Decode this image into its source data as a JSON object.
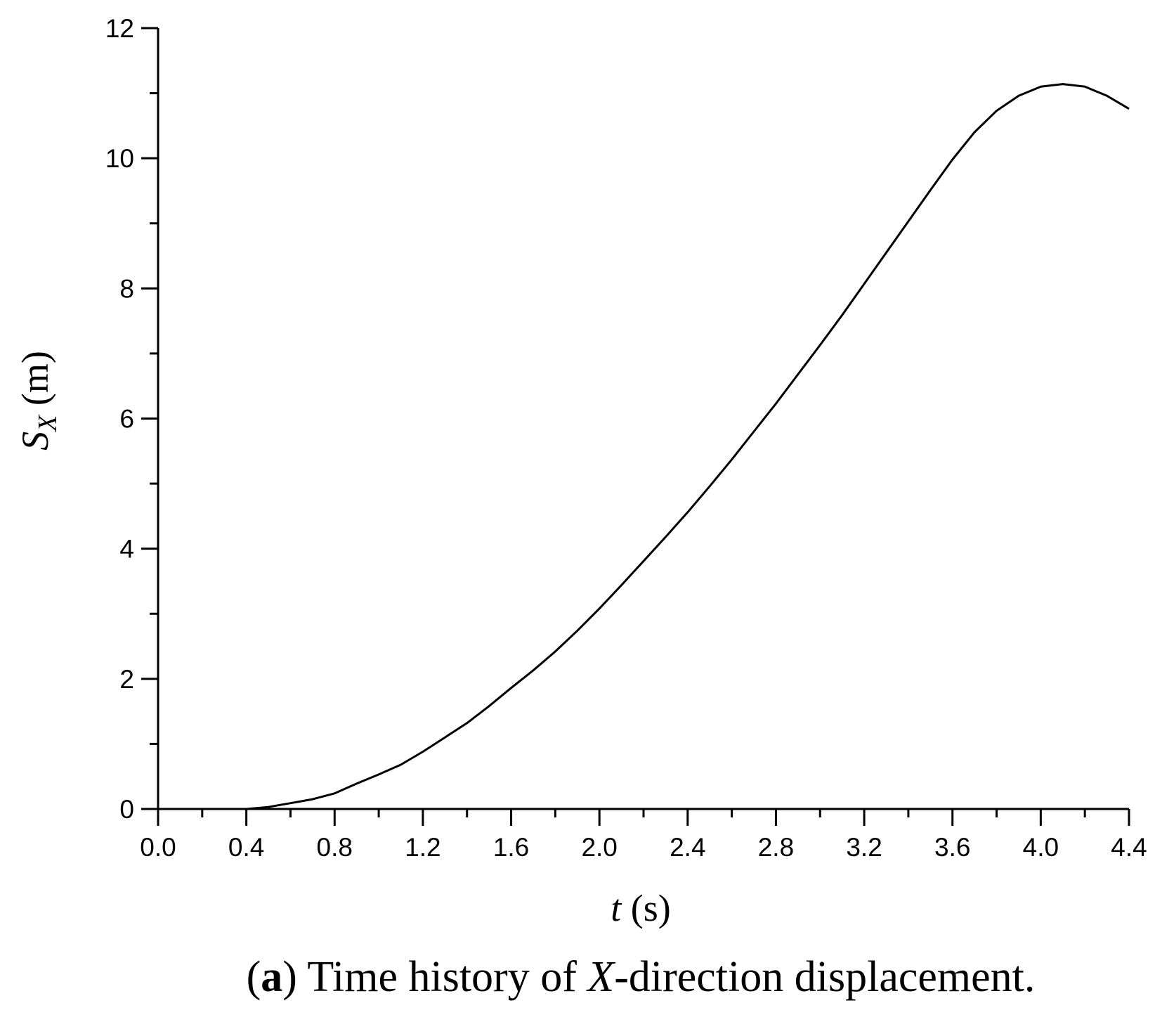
{
  "chart_data": {
    "type": "line",
    "xlabel": {
      "var": "t",
      "unit": " (s)"
    },
    "ylabel": {
      "var": "S",
      "sub": "X",
      "unit": " (m)"
    },
    "xlim": [
      0.0,
      4.4
    ],
    "ylim": [
      0,
      12
    ],
    "x_ticks": [
      "0.0",
      "0.4",
      "0.8",
      "1.2",
      "1.6",
      "2.0",
      "2.4",
      "2.8",
      "3.2",
      "3.6",
      "4.0",
      "4.4"
    ],
    "y_ticks": [
      "0",
      "2",
      "4",
      "6",
      "8",
      "10",
      "12"
    ],
    "grid": false,
    "legend": "none",
    "series": [
      {
        "color": "#000000",
        "points": [
          [
            0.4,
            0.0
          ],
          [
            0.5,
            0.03
          ],
          [
            0.6,
            0.09
          ],
          [
            0.7,
            0.15
          ],
          [
            0.8,
            0.24
          ],
          [
            0.9,
            0.39
          ],
          [
            1.0,
            0.53
          ],
          [
            1.1,
            0.68
          ],
          [
            1.2,
            0.88
          ],
          [
            1.3,
            1.1
          ],
          [
            1.4,
            1.32
          ],
          [
            1.5,
            1.58
          ],
          [
            1.6,
            1.86
          ],
          [
            1.7,
            2.13
          ],
          [
            1.8,
            2.42
          ],
          [
            1.9,
            2.74
          ],
          [
            2.0,
            3.08
          ],
          [
            2.1,
            3.44
          ],
          [
            2.2,
            3.81
          ],
          [
            2.3,
            4.18
          ],
          [
            2.4,
            4.56
          ],
          [
            2.5,
            4.96
          ],
          [
            2.6,
            5.37
          ],
          [
            2.7,
            5.8
          ],
          [
            2.8,
            6.23
          ],
          [
            2.9,
            6.68
          ],
          [
            3.0,
            7.13
          ],
          [
            3.1,
            7.59
          ],
          [
            3.2,
            8.07
          ],
          [
            3.3,
            8.55
          ],
          [
            3.4,
            9.03
          ],
          [
            3.5,
            9.51
          ],
          [
            3.6,
            9.98
          ],
          [
            3.7,
            10.4
          ],
          [
            3.8,
            10.73
          ],
          [
            3.9,
            10.96
          ],
          [
            4.0,
            11.1
          ],
          [
            4.1,
            11.14
          ],
          [
            4.2,
            11.1
          ],
          [
            4.3,
            10.96
          ],
          [
            4.4,
            10.76
          ]
        ]
      }
    ]
  },
  "caption": {
    "label": "a",
    "text_before": " Time history of ",
    "var": "X",
    "text_after": "-direction displacement."
  }
}
